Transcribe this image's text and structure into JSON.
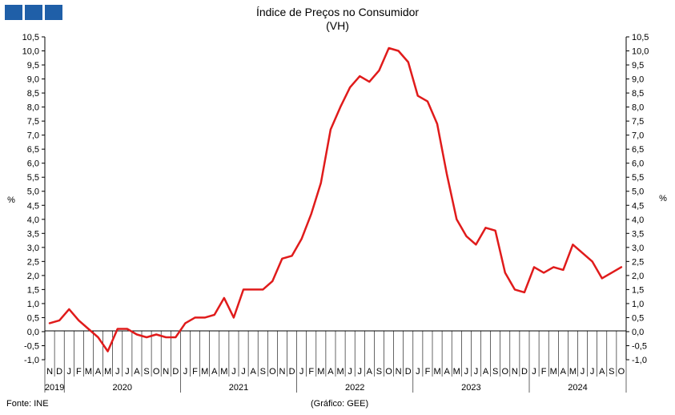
{
  "chart_data": {
    "type": "line",
    "title": "Índice de Preços no Consumidor",
    "subtitle": "(VH)",
    "ylabel": "%",
    "ylabel_right": "%",
    "ylim": [
      -1.0,
      10.5
    ],
    "yticks": [
      "-1,0",
      "-0,5",
      "0,0",
      "0,5",
      "1,0",
      "1,5",
      "2,0",
      "2,5",
      "3,0",
      "3,5",
      "4,0",
      "4,5",
      "5,0",
      "5,5",
      "6,0",
      "6,5",
      "7,0",
      "7,5",
      "8,0",
      "8,5",
      "9,0",
      "9,5",
      "10,0",
      "10,5"
    ],
    "month_labels": [
      "N",
      "D",
      "J",
      "F",
      "M",
      "A",
      "M",
      "J",
      "J",
      "A",
      "S",
      "O",
      "N",
      "D",
      "J",
      "F",
      "M",
      "A",
      "M",
      "J",
      "J",
      "A",
      "S",
      "O",
      "N",
      "D",
      "J",
      "F",
      "M",
      "A",
      "M",
      "J",
      "J",
      "A",
      "S",
      "O",
      "N",
      "D",
      "J",
      "F",
      "M",
      "A",
      "M",
      "J",
      "J",
      "A",
      "S",
      "O",
      "N",
      "D",
      "J",
      "F",
      "M",
      "A",
      "M",
      "J",
      "J",
      "A",
      "S",
      "O"
    ],
    "years": [
      {
        "label": "2019",
        "start": 0,
        "count": 2
      },
      {
        "label": "2020",
        "start": 2,
        "count": 12
      },
      {
        "label": "2021",
        "start": 14,
        "count": 12
      },
      {
        "label": "2022",
        "start": 26,
        "count": 12
      },
      {
        "label": "2023",
        "start": 38,
        "count": 12
      },
      {
        "label": "2024",
        "start": 50,
        "count": 10
      }
    ],
    "series": [
      {
        "color": "#e01b1b",
        "values": [
          0.3,
          0.4,
          0.8,
          0.4,
          0.1,
          -0.2,
          -0.7,
          0.1,
          0.1,
          -0.1,
          -0.2,
          -0.1,
          -0.2,
          -0.2,
          0.3,
          0.5,
          0.5,
          0.6,
          1.2,
          0.5,
          1.5,
          1.5,
          1.5,
          1.8,
          2.6,
          2.7,
          3.3,
          4.2,
          5.3,
          7.2,
          8.0,
          8.7,
          9.1,
          8.9,
          9.3,
          10.1,
          10.0,
          9.6,
          8.4,
          8.2,
          7.4,
          5.6,
          4.0,
          3.4,
          3.1,
          3.7,
          3.6,
          2.1,
          1.5,
          1.4,
          2.3,
          2.1,
          2.3,
          2.2,
          3.1,
          2.8,
          2.5,
          1.9,
          2.1,
          2.3
        ]
      }
    ]
  },
  "footer": {
    "source": "Fonte: INE",
    "credit": "(Gráfico: GEE)"
  }
}
